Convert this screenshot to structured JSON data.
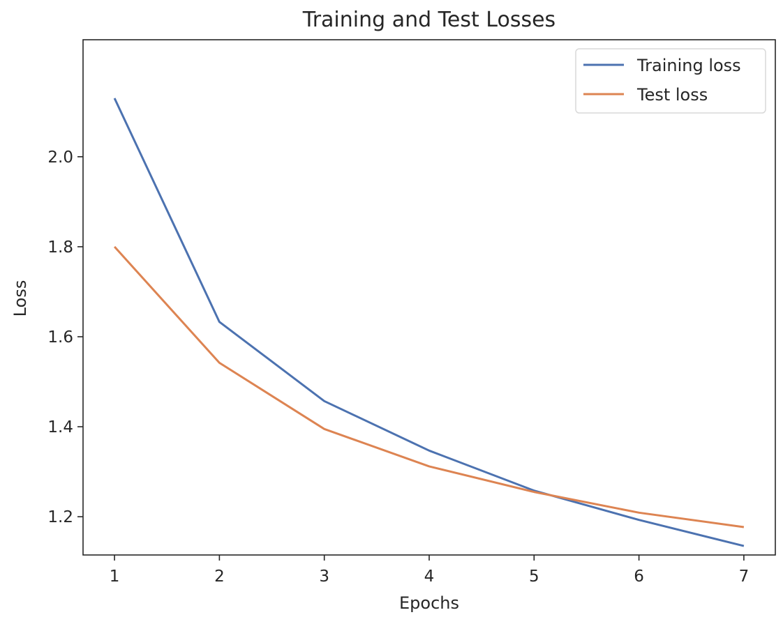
{
  "chart_data": {
    "type": "line",
    "title": "Training and Test Losses",
    "xlabel": "Epochs",
    "ylabel": "Loss",
    "x": [
      1,
      2,
      3,
      4,
      5,
      6,
      7
    ],
    "xticks": [
      "1",
      "2",
      "3",
      "4",
      "5",
      "6",
      "7"
    ],
    "yticks": [
      "1.2",
      "1.4",
      "1.6",
      "1.8",
      "2.0"
    ],
    "xlim": [
      0.7,
      7.3
    ],
    "ylim": [
      1.115,
      2.26
    ],
    "grid": false,
    "legend_position": "top-right",
    "series": [
      {
        "name": "Training loss",
        "color": "#4c72b0",
        "values": [
          2.13,
          1.633,
          1.457,
          1.347,
          1.258,
          1.193,
          1.135
        ]
      },
      {
        "name": "Test loss",
        "color": "#dd8452",
        "values": [
          1.8,
          1.542,
          1.395,
          1.312,
          1.255,
          1.209,
          1.177
        ]
      }
    ]
  }
}
